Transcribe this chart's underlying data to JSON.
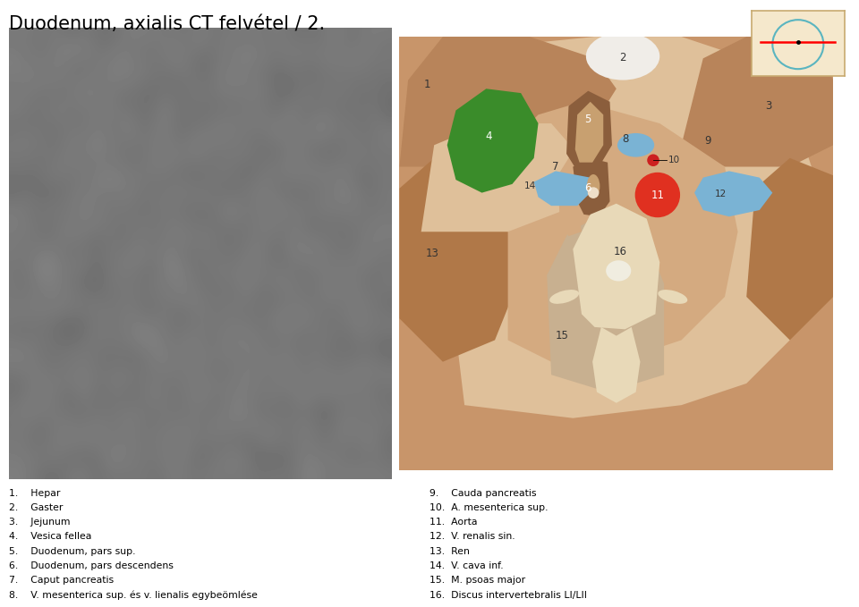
{
  "title": "Duodenum, axialis CT felvétel / 2.",
  "bg_color": "#ffffff",
  "legend_left": [
    "1.    Hepar",
    "2.    Gaster",
    "3.    Jejunum",
    "4.    Vesica fellea",
    "5.    Duodenum, pars sup.",
    "6.    Duodenum, pars descendens",
    "7.    Caput pancreatis",
    "8.    V. mesenterica sup. és v. lienalis egybeömlése"
  ],
  "legend_right": [
    "9.    Cauda pancreatis",
    "10.  A. mesenterica sup.",
    "11.  Aorta",
    "12.  V. renalis sin.",
    "13.  Ren",
    "14.  V. cava inf.",
    "15.  M. psoas major",
    "16.  Discus intervertebralis LI/LII"
  ],
  "c_bg": "#c8956a",
  "c_dark_brown": "#a0683a",
  "c_mid_brown": "#b8845a",
  "c_light_tan": "#d4aa80",
  "c_lighter_tan": "#dfc09a",
  "c_green": "#3a8c2a",
  "c_blue": "#7ab3d4",
  "c_red_big": "#e03020",
  "c_red_small": "#cc2020",
  "c_white": "#f8f8f8",
  "c_cream": "#e8d9b8",
  "c_gaster": "#f0ede8",
  "c_kidney": "#b07848",
  "c_duo_outer": "#8b5e3c",
  "c_duo_inner": "#c8a070"
}
